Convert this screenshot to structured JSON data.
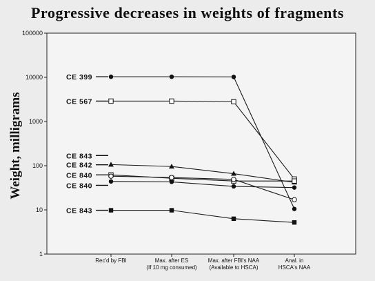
{
  "chart_data": {
    "type": "line",
    "title": "Progressive decreases in weights of fragments",
    "ylabel": "Weight, milligrams",
    "yscale": "log",
    "ylim": [
      1,
      100000
    ],
    "yticks": [
      "1",
      "10",
      "100",
      "1000",
      "10000",
      "100000"
    ],
    "grid": true,
    "categories": [
      {
        "line1": "Rec'd by FBI",
        "line2": ""
      },
      {
        "line1": "Max. after ES",
        "line2": "(If 10 mg consumed)"
      },
      {
        "line1": "Max. after FBI's NAA",
        "line2": "(Available to HSCA)"
      },
      {
        "line1": "Anal. in",
        "line2": "HSCA's NAA"
      }
    ],
    "series": [
      {
        "name": "CE 399",
        "marker": "filled-circle",
        "values": [
          10300,
          10300,
          10200,
          10.5
        ]
      },
      {
        "name": "CE 567",
        "marker": "open-square",
        "values": [
          2900,
          2900,
          2800,
          50
        ]
      },
      {
        "name": "CE 843",
        "marker": "filled-triangle",
        "values": [
          106,
          96,
          66,
          42
        ]
      },
      {
        "name": "CE 842",
        "marker": "open-square",
        "values": [
          62,
          52,
          45,
          45
        ]
      },
      {
        "name": "CE 840",
        "marker": "open-circle",
        "values": [
          58,
          54,
          49,
          17
        ]
      },
      {
        "name": "CE 840",
        "marker": "filled-circle",
        "values": [
          44,
          43,
          34,
          32
        ]
      },
      {
        "name": "CE 843",
        "marker": "filled-square",
        "values": [
          9.8,
          9.8,
          6.3,
          5.2
        ]
      }
    ],
    "label_values": [
      10300,
      2900,
      170,
      105,
      62,
      36,
      9.8
    ]
  }
}
